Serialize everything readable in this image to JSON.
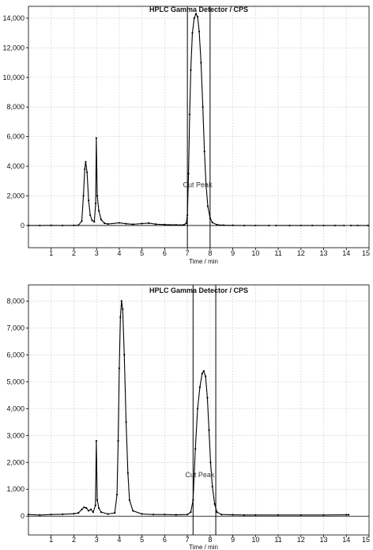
{
  "chart_data": [
    {
      "type": "line",
      "title": "HPLC Gamma Detector / CPS",
      "xlabel": "Time / min",
      "ylabel": "",
      "xlim": [
        0,
        15
      ],
      "ylim": [
        -1500,
        14800
      ],
      "xticks": [
        1,
        2,
        3,
        4,
        5,
        6,
        7,
        8,
        9,
        10,
        11,
        12,
        13,
        14,
        15
      ],
      "yticks": [
        0,
        2000,
        4000,
        6000,
        8000,
        10000,
        12000,
        14000
      ],
      "ytick_labels": [
        "0",
        "2,000",
        "4,000",
        "6,000",
        "8,000",
        "10,000",
        "12,000",
        "14,000"
      ],
      "grid": true,
      "annotation": "Cut Peak",
      "annotation_at": [
        7.45,
        2600
      ],
      "cut_lines": [
        7.0,
        8.0
      ],
      "series": [
        {
          "segments": [
            [
              [
                0,
                0
              ],
              [
                0.5,
                0
              ],
              [
                1.0,
                10
              ],
              [
                1.5,
                0
              ],
              [
                2.0,
                10
              ],
              [
                2.2,
                20
              ],
              [
                2.35,
                300
              ],
              [
                2.42,
                2000
              ],
              [
                2.48,
                3800
              ],
              [
                2.52,
                4300
              ],
              [
                2.58,
                3600
              ],
              [
                2.65,
                1700
              ],
              [
                2.72,
                700
              ],
              [
                2.8,
                350
              ],
              [
                2.9,
                250
              ],
              [
                2.96,
                1500
              ],
              [
                2.99,
                5900
              ],
              [
                3.03,
                2000
              ],
              [
                3.1,
                1000
              ],
              [
                3.2,
                400
              ],
              [
                3.35,
                150
              ],
              [
                3.5,
                100
              ],
              [
                4.0,
                180
              ],
              [
                4.3,
                120
              ],
              [
                4.6,
                80
              ],
              [
                5.0,
                130
              ],
              [
                5.3,
                160
              ],
              [
                5.6,
                90
              ],
              [
                6.0,
                60
              ],
              [
                6.5,
                40
              ],
              [
                6.85,
                50
              ],
              [
                6.95,
                150
              ],
              [
                7.0,
                700
              ],
              [
                7.05,
                3500
              ],
              [
                7.1,
                7500
              ],
              [
                7.15,
                10500
              ],
              [
                7.22,
                13000
              ],
              [
                7.3,
                14000
              ],
              [
                7.38,
                14300
              ],
              [
                7.45,
                14100
              ],
              [
                7.52,
                13100
              ],
              [
                7.6,
                11000
              ],
              [
                7.68,
                8000
              ],
              [
                7.75,
                5000
              ],
              [
                7.82,
                2800
              ],
              [
                7.9,
                1300
              ],
              [
                8.0,
                500
              ],
              [
                8.1,
                200
              ],
              [
                8.3,
                50
              ],
              [
                8.6,
                20
              ],
              [
                9.0,
                10
              ],
              [
                9.5,
                0
              ],
              [
                10.0,
                0
              ],
              [
                10.6,
                0
              ]
            ],
            [
              [
                10.9,
                0
              ],
              [
                11.5,
                0
              ],
              [
                12.0,
                0
              ],
              [
                12.5,
                0
              ],
              [
                13.0,
                0
              ],
              [
                13.5,
                0
              ],
              [
                13.9,
                0
              ]
            ],
            [
              [
                14.2,
                0
              ],
              [
                14.5,
                0
              ],
              [
                14.95,
                0
              ]
            ]
          ]
        }
      ]
    },
    {
      "type": "line",
      "title": "HPLC Gamma Detector / CPS",
      "xlabel": "Time / min",
      "ylabel": "",
      "xlim": [
        0,
        15
      ],
      "ylim": [
        -700,
        8600
      ],
      "xticks": [
        1,
        2,
        3,
        4,
        5,
        6,
        7,
        8,
        9,
        10,
        11,
        12,
        13,
        14,
        15
      ],
      "yticks": [
        0,
        1000,
        2000,
        3000,
        4000,
        5000,
        6000,
        7000,
        8000
      ],
      "ytick_labels": [
        "0",
        "1,000",
        "2,000",
        "3,000",
        "4,000",
        "5,000",
        "6,000",
        "7,000",
        "8,000"
      ],
      "grid": true,
      "annotation": "Cut Peak",
      "annotation_at": [
        7.55,
        1450
      ],
      "cut_lines": [
        7.25,
        8.25
      ],
      "series": [
        {
          "segments": [
            [
              [
                0,
                60
              ],
              [
                0.5,
                40
              ],
              [
                1.0,
                60
              ],
              [
                1.5,
                70
              ],
              [
                2.0,
                90
              ],
              [
                2.2,
                120
              ],
              [
                2.35,
                250
              ],
              [
                2.45,
                330
              ],
              [
                2.55,
                300
              ],
              [
                2.65,
                200
              ],
              [
                2.75,
                250
              ],
              [
                2.85,
                150
              ],
              [
                2.95,
                400
              ],
              [
                2.99,
                2800
              ],
              [
                3.03,
                600
              ],
              [
                3.1,
                300
              ],
              [
                3.2,
                150
              ],
              [
                3.5,
                80
              ],
              [
                3.8,
                120
              ],
              [
                3.9,
                800
              ],
              [
                3.95,
                2800
              ],
              [
                4.0,
                5500
              ],
              [
                4.05,
                7400
              ],
              [
                4.1,
                8000
              ],
              [
                4.15,
                7700
              ],
              [
                4.22,
                6000
              ],
              [
                4.3,
                3500
              ],
              [
                4.38,
                1600
              ],
              [
                4.45,
                600
              ],
              [
                4.6,
                200
              ],
              [
                5.0,
                80
              ],
              [
                5.5,
                60
              ],
              [
                6.0,
                60
              ],
              [
                6.5,
                50
              ],
              [
                7.0,
                60
              ],
              [
                7.15,
                150
              ],
              [
                7.25,
                600
              ],
              [
                7.35,
                2500
              ],
              [
                7.45,
                4000
              ],
              [
                7.55,
                4800
              ],
              [
                7.65,
                5300
              ],
              [
                7.72,
                5400
              ],
              [
                7.8,
                5200
              ],
              [
                7.88,
                4400
              ],
              [
                7.95,
                3200
              ],
              [
                8.02,
                2000
              ],
              [
                8.1,
                1100
              ],
              [
                8.2,
                450
              ],
              [
                8.3,
                150
              ],
              [
                8.5,
                60
              ],
              [
                9.0,
                50
              ],
              [
                9.5,
                40
              ],
              [
                10.0,
                40
              ],
              [
                11.0,
                40
              ],
              [
                12.0,
                40
              ],
              [
                13.0,
                40
              ],
              [
                14.0,
                50
              ],
              [
                14.1,
                50
              ]
            ]
          ]
        }
      ]
    }
  ]
}
